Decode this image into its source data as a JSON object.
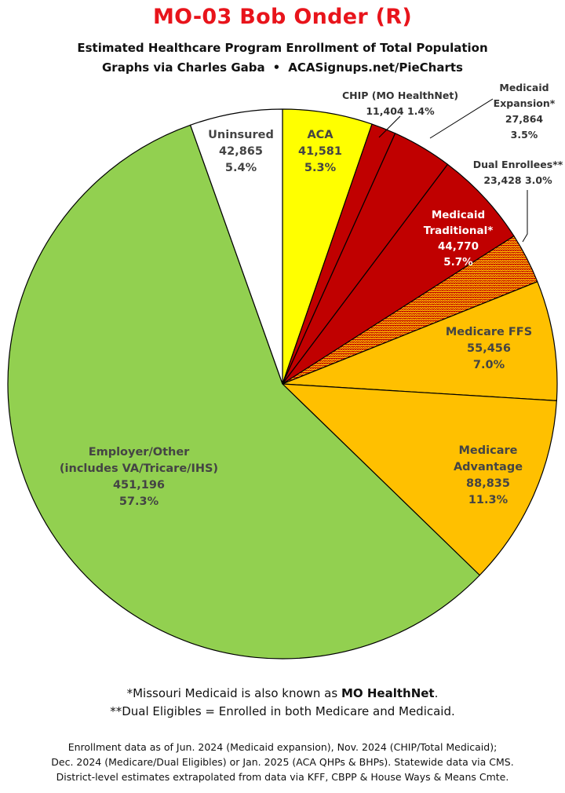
{
  "header": {
    "title": "MO-03 Bob Onder (R)",
    "subtitle1": "Estimated Healthcare Program Enrollment of Total Population",
    "subtitle2_left": "Graphs via Charles Gaba",
    "subtitle2_sep": "•",
    "subtitle2_right": "ACASignups.net/PieCharts"
  },
  "notes": {
    "line1_prefix": "*Missouri Medicaid is also known as ",
    "line1_bold": "MO HealthNet",
    "line1_suffix": ".",
    "line2": "**Dual Eligibles = Enrolled in both Medicare and Medicaid."
  },
  "footer": {
    "line1": "Enrollment data as of Jun. 2024 (Medicaid expansion), Nov. 2024 (CHIP/Total Medicaid);",
    "line2": "Dec. 2024 (Medicare/Dual Eligibles) or Jan. 2025 (ACA QHPs & BHPs). Statewide data via CMS.",
    "line3": "District-level estimates extrapolated from data via KFF, CBPP & House Ways & Means Cmte."
  },
  "chart_data": {
    "type": "pie",
    "start": "12 o'clock, clockwise",
    "slices": [
      {
        "key": "aca",
        "lines": [
          "ACA",
          "41,581",
          "5.3%"
        ],
        "value": 41581,
        "percent": 5.3,
        "color": "#ffff00",
        "text_color": "#444444"
      },
      {
        "key": "chip",
        "lines": [
          "CHIP (MO HealthNet)",
          "11,404 1.4%"
        ],
        "value": 11404,
        "percent": 1.4,
        "color": "#c00000",
        "text_color": "#333333"
      },
      {
        "key": "medicaid-expansion",
        "lines": [
          "Medicaid",
          "Expansion*",
          "27,864",
          "3.5%"
        ],
        "value": 27864,
        "percent": 3.5,
        "color": "#c00000",
        "text_color": "#333333"
      },
      {
        "key": "medicaid-traditional",
        "lines": [
          "Medicaid",
          "Traditional*",
          "44,770",
          "5.7%"
        ],
        "value": 44770,
        "percent": 5.7,
        "color": "#c00000",
        "text_color": "#ffffff"
      },
      {
        "key": "dual-enrollees",
        "lines": [
          "Dual Enrollees**",
          "23,428 3.0%"
        ],
        "value": 23428,
        "percent": 3.0,
        "color": "#c00000",
        "pattern": "zigzag",
        "pattern_color": "#ffc000",
        "text_color": "#333333"
      },
      {
        "key": "medicare-ffs",
        "lines": [
          "Medicare FFS",
          "55,456",
          "7.0%"
        ],
        "value": 55456,
        "percent": 7.0,
        "color": "#ffc000",
        "text_color": "#444444"
      },
      {
        "key": "medicare-advantage",
        "lines": [
          "Medicare",
          "Advantage",
          "88,835",
          "11.3%"
        ],
        "value": 88835,
        "percent": 11.3,
        "color": "#ffc000",
        "text_color": "#444444"
      },
      {
        "key": "employer-other",
        "lines": [
          "Employer/Other",
          "(includes VA/Tricare/IHS)",
          "451,196",
          "57.3%"
        ],
        "value": 451196,
        "percent": 57.3,
        "color": "#92d050",
        "text_color": "#444444"
      },
      {
        "key": "uninsured",
        "lines": [
          "Uninsured",
          "42,865",
          "5.4%"
        ],
        "value": 42865,
        "percent": 5.4,
        "color": "#ffffff",
        "text_color": "#444444"
      }
    ]
  }
}
